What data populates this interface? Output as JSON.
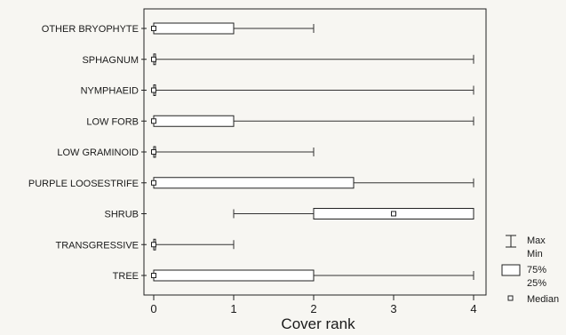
{
  "chart_data": {
    "type": "box",
    "orientation": "horizontal",
    "xlabel": "Cover rank",
    "xlim": [
      0,
      4
    ],
    "xticks": [
      "0",
      "1",
      "2",
      "3",
      "4"
    ],
    "categories": [
      "OTHER BRYOPHYTE",
      "SPHAGNUM",
      "NYMPHAEID",
      "LOW FORB",
      "LOW GRAMINOID",
      "PURPLE LOOSESTRIFE",
      "SHRUB",
      "TRANSGRESSIVE",
      "TREE"
    ],
    "boxes": [
      {
        "min": 0,
        "q1": 0,
        "median": 0,
        "q3": 1,
        "max": 2
      },
      {
        "min": 0,
        "q1": 0,
        "median": 0,
        "q3": 0,
        "max": 4
      },
      {
        "min": 0,
        "q1": 0,
        "median": 0,
        "q3": 0,
        "max": 4
      },
      {
        "min": 0,
        "q1": 0,
        "median": 0,
        "q3": 1,
        "max": 4
      },
      {
        "min": 0,
        "q1": 0,
        "median": 0,
        "q3": 0,
        "max": 2
      },
      {
        "min": 0,
        "q1": 0,
        "median": 0,
        "q3": 2.5,
        "max": 4
      },
      {
        "min": 1,
        "q1": 2,
        "median": 3,
        "q3": 4,
        "max": 4
      },
      {
        "min": 0,
        "q1": 0,
        "median": 0,
        "q3": 0,
        "max": 1
      },
      {
        "min": 0,
        "q1": 0,
        "median": 0,
        "q3": 2,
        "max": 4
      }
    ],
    "legend": {
      "whisker_max": "Max",
      "whisker_min": "Min",
      "box_top": "75%",
      "box_bottom": "25%",
      "median": "Median"
    },
    "legend_position": "bottom-right",
    "grid": false
  }
}
